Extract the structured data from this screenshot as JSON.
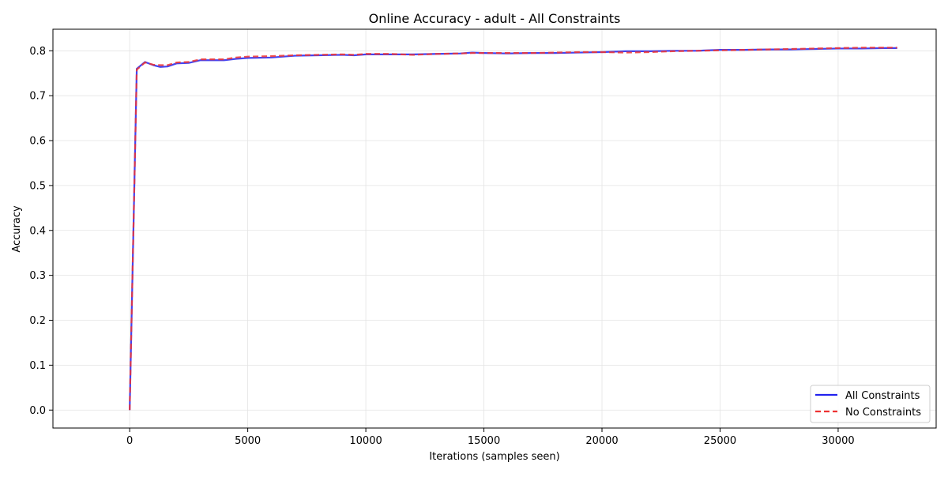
{
  "chart_data": {
    "type": "line",
    "title": "Online Accuracy - adult - All Constraints",
    "xlabel": "Iterations (samples seen)",
    "ylabel": "Accuracy",
    "xlim": [
      -3250,
      34150
    ],
    "ylim": [
      -0.04,
      0.848
    ],
    "xticks": [
      0,
      5000,
      10000,
      15000,
      20000,
      25000,
      30000
    ],
    "xtick_labels": [
      "0",
      "5000",
      "10000",
      "15000",
      "20000",
      "25000",
      "30000"
    ],
    "yticks": [
      0.0,
      0.1,
      0.2,
      0.3,
      0.4,
      0.5,
      0.6,
      0.7,
      0.8
    ],
    "ytick_labels": [
      "0.0",
      "0.1",
      "0.2",
      "0.3",
      "0.4",
      "0.5",
      "0.6",
      "0.7",
      "0.8"
    ],
    "grid": true,
    "legend_position": "lower-right",
    "series": [
      {
        "name": "All Constraints",
        "color": "#2222ee",
        "style": "solid",
        "x": [
          0,
          300,
          650,
          1000,
          1300,
          1600,
          2000,
          2500,
          3000,
          3500,
          4000,
          4500,
          5000,
          6000,
          7000,
          8000,
          9000,
          9500,
          10000,
          11000,
          12000,
          13000,
          14000,
          14500,
          15000,
          16000,
          17000,
          18000,
          19000,
          20000,
          21000,
          22000,
          23000,
          24000,
          25000,
          26000,
          27000,
          28000,
          29000,
          30000,
          31000,
          32000,
          32500
        ],
        "y": [
          0.0,
          0.76,
          0.775,
          0.768,
          0.764,
          0.765,
          0.772,
          0.773,
          0.779,
          0.779,
          0.779,
          0.782,
          0.784,
          0.785,
          0.789,
          0.79,
          0.791,
          0.79,
          0.792,
          0.792,
          0.792,
          0.793,
          0.794,
          0.796,
          0.795,
          0.794,
          0.795,
          0.795,
          0.796,
          0.797,
          0.799,
          0.799,
          0.8,
          0.8,
          0.802,
          0.802,
          0.803,
          0.803,
          0.804,
          0.805,
          0.805,
          0.806,
          0.806
        ]
      },
      {
        "name": "No Constraints",
        "color": "#ee3333",
        "style": "dashed",
        "x": [
          0,
          300,
          650,
          1000,
          1300,
          1600,
          2000,
          2500,
          3000,
          3500,
          4000,
          4500,
          5000,
          6000,
          7000,
          8000,
          9000,
          9500,
          10000,
          11000,
          12000,
          13000,
          14000,
          14500,
          15000,
          16000,
          17000,
          18000,
          19000,
          20000,
          21000,
          22000,
          23000,
          24000,
          25000,
          26000,
          27000,
          28000,
          29000,
          30000,
          31000,
          32000,
          32500
        ],
        "y": [
          0.0,
          0.758,
          0.774,
          0.769,
          0.768,
          0.768,
          0.774,
          0.775,
          0.781,
          0.781,
          0.781,
          0.785,
          0.787,
          0.788,
          0.79,
          0.791,
          0.792,
          0.791,
          0.793,
          0.793,
          0.791,
          0.793,
          0.794,
          0.795,
          0.795,
          0.795,
          0.795,
          0.796,
          0.797,
          0.797,
          0.796,
          0.797,
          0.799,
          0.8,
          0.801,
          0.802,
          0.803,
          0.804,
          0.805,
          0.806,
          0.807,
          0.807,
          0.807
        ]
      }
    ]
  }
}
